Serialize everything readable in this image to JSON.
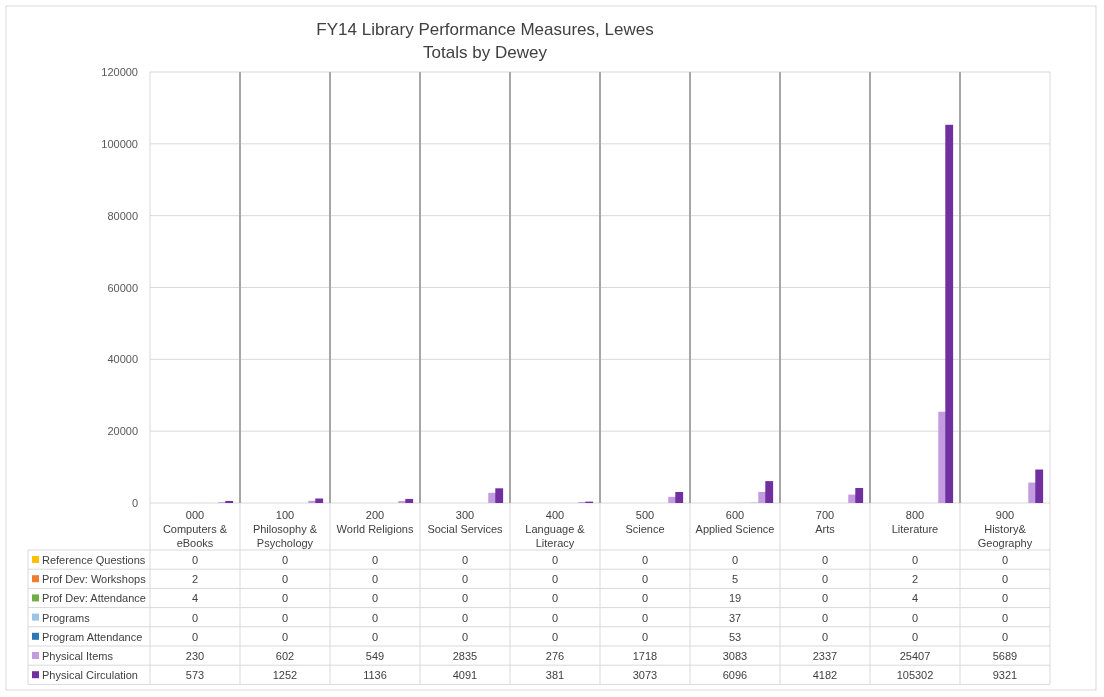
{
  "chart_data": {
    "type": "bar",
    "title": "FY14 Library Performance Measures, Lewes",
    "subtitle": "Totals by Dewey",
    "categories": [
      "000 Computers & eBooks",
      "100 Philosophy & Psychology",
      "200 World Religions",
      "300 Social Services",
      "400 Language & Literacy",
      "500 Science",
      "600 Applied Science",
      "700 Arts",
      "800 Literature",
      "900 History& Geography"
    ],
    "series": [
      {
        "name": "Reference Questions",
        "color": "#ffc000",
        "values": [
          0,
          0,
          0,
          0,
          0,
          0,
          0,
          0,
          0,
          0
        ]
      },
      {
        "name": "Prof Dev: Workshops",
        "color": "#ed7d31",
        "values": [
          2,
          0,
          0,
          0,
          0,
          0,
          5,
          0,
          2,
          0
        ]
      },
      {
        "name": "Prof Dev: Attendance",
        "color": "#70ad47",
        "values": [
          4,
          0,
          0,
          0,
          0,
          0,
          19,
          0,
          4,
          0
        ]
      },
      {
        "name": "Programs",
        "color": "#9dc3e6",
        "values": [
          0,
          0,
          0,
          0,
          0,
          0,
          37,
          0,
          0,
          0
        ]
      },
      {
        "name": "Program Attendance",
        "color": "#2e75b6",
        "values": [
          0,
          0,
          0,
          0,
          0,
          0,
          53,
          0,
          0,
          0
        ]
      },
      {
        "name": "Physical Items",
        "color": "#c39bdf",
        "values": [
          230,
          602,
          549,
          2835,
          276,
          1718,
          3083,
          2337,
          25407,
          5689
        ]
      },
      {
        "name": "Physical Circulation",
        "color": "#7030a0",
        "values": [
          573,
          1252,
          1136,
          4091,
          381,
          3073,
          6096,
          4182,
          105302,
          9321
        ]
      }
    ],
    "ylim": [
      0,
      120000
    ],
    "yticks": [
      0,
      20000,
      40000,
      60000,
      80000,
      100000,
      120000
    ],
    "grid": "y",
    "data_labels": true,
    "legend": "bottom"
  }
}
